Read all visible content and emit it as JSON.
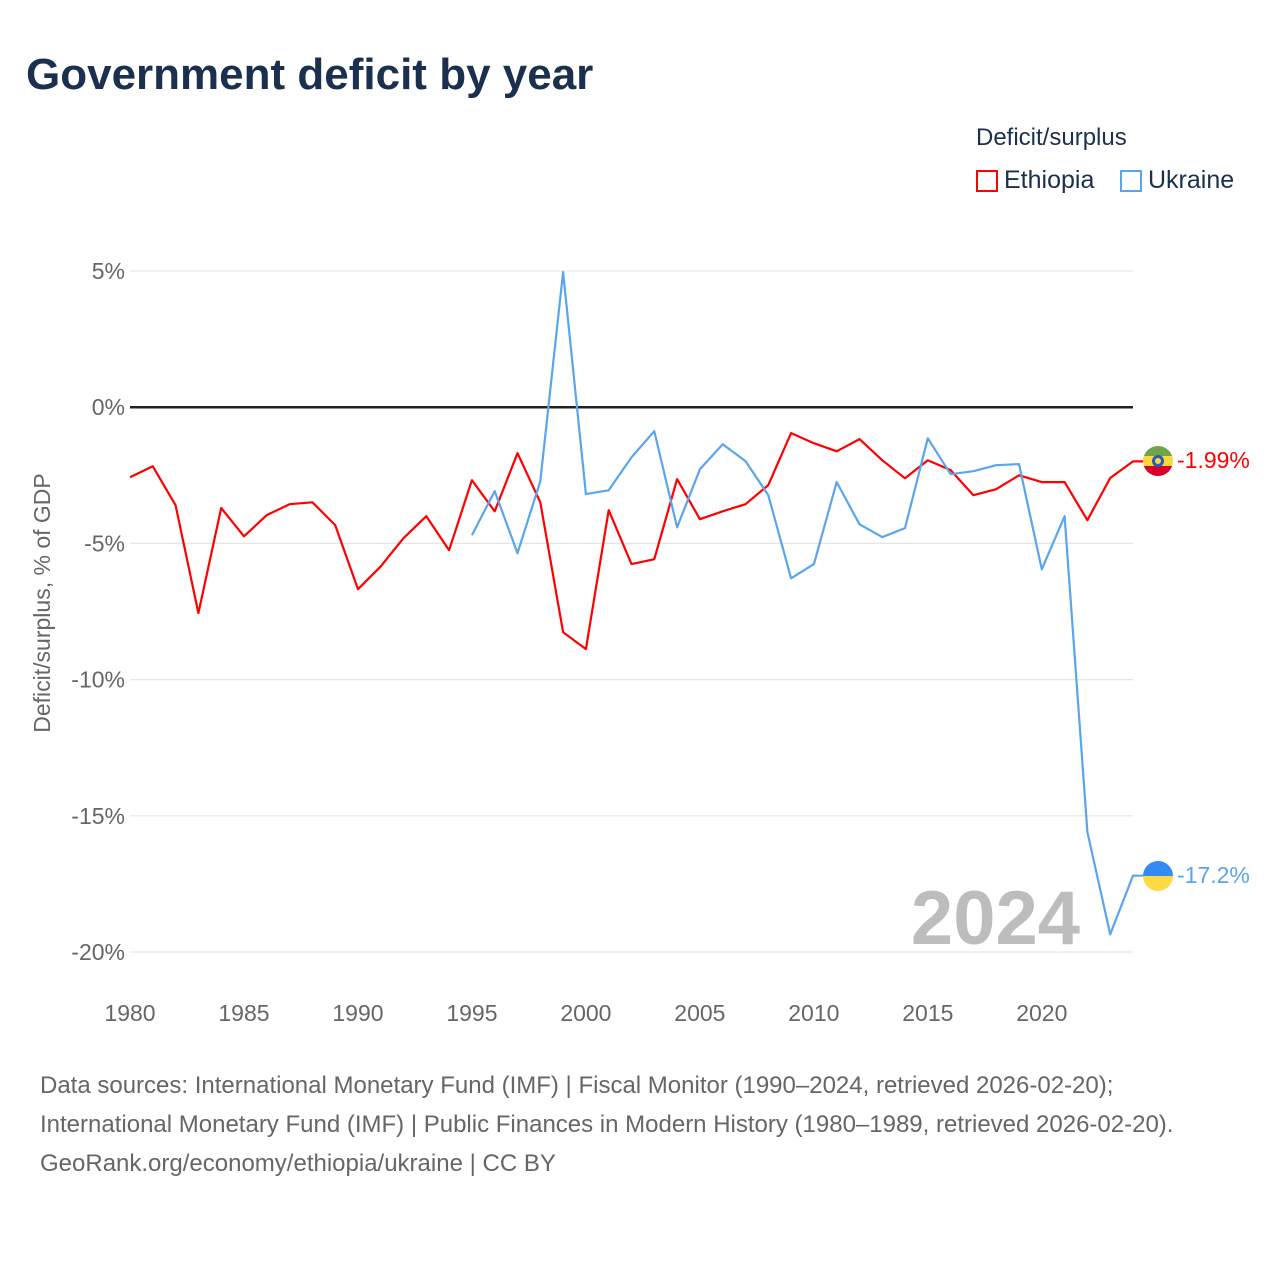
{
  "title": "Government deficit by year",
  "legend": {
    "title": "Deficit/surplus",
    "items": [
      {
        "label": "Ethiopia",
        "color": "#ff0000"
      },
      {
        "label": "Ukraine",
        "color": "#5aa5eb"
      }
    ]
  },
  "footer": {
    "sources": "Data sources: International Monetary Fund (IMF) | Fiscal Monitor (1990–2024, retrieved 2026-02-20); International Monetary Fund (IMF) | Public Finances in Modern History (1980–1989, retrieved 2026-02-20).",
    "credit": "GeoRank.org/economy/ethiopia/ukraine | CC BY"
  },
  "chart_data": {
    "type": "line",
    "title": "Government deficit by year",
    "ylabel": "Deficit/surplus, % of GDP",
    "xlabel": "",
    "xlim": [
      1980,
      2024
    ],
    "ylim": [
      -20,
      5
    ],
    "x_ticks": [
      "1980",
      "1985",
      "1990",
      "1995",
      "2000",
      "2005",
      "2010",
      "2015",
      "2020"
    ],
    "y_ticks": [
      {
        "v": 5,
        "label": "5%"
      },
      {
        "v": 0,
        "label": "0%"
      },
      {
        "v": -5,
        "label": "-5%"
      },
      {
        "v": -10,
        "label": "-10%"
      },
      {
        "v": -15,
        "label": "-15%"
      },
      {
        "v": -20,
        "label": "-20%"
      }
    ],
    "year_label": "2024",
    "series": [
      {
        "name": "Ethiopia",
        "color": "#ff0000",
        "end_label": "-1.99%",
        "start": 1980,
        "values": [
          -2.57,
          -2.17,
          -3.6,
          -7.56,
          -3.7,
          -4.74,
          -3.96,
          -3.56,
          -3.49,
          -4.33,
          -6.68,
          -5.84,
          -4.81,
          -4.0,
          -5.25,
          -2.68,
          -3.82,
          -1.69,
          -3.49,
          -8.26,
          -8.88,
          -3.78,
          -5.76,
          -5.58,
          -2.64,
          -4.11,
          -3.82,
          -3.56,
          -2.86,
          -0.95,
          -1.32,
          -1.62,
          -1.17,
          -1.95,
          -2.61,
          -1.95,
          -2.31,
          -3.23,
          -3.01,
          -2.5,
          -2.75,
          -2.75,
          -4.15,
          -2.6,
          -1.99
        ]
      },
      {
        "name": "Ukraine",
        "color": "#5aa5eb",
        "end_label": "-17.2%",
        "start": 1995,
        "values": [
          -4.7,
          -3.08,
          -5.36,
          -2.72,
          4.96,
          -3.19,
          -3.05,
          -1.84,
          -0.88,
          -4.41,
          -2.28,
          -1.36,
          -1.98,
          -3.23,
          -6.28,
          -5.76,
          -2.75,
          -4.3,
          -4.77,
          -4.44,
          -1.14,
          -2.46,
          -2.35,
          -2.13,
          -2.09,
          -5.95,
          -4.0,
          -15.6,
          -19.35,
          -17.2
        ]
      }
    ]
  }
}
